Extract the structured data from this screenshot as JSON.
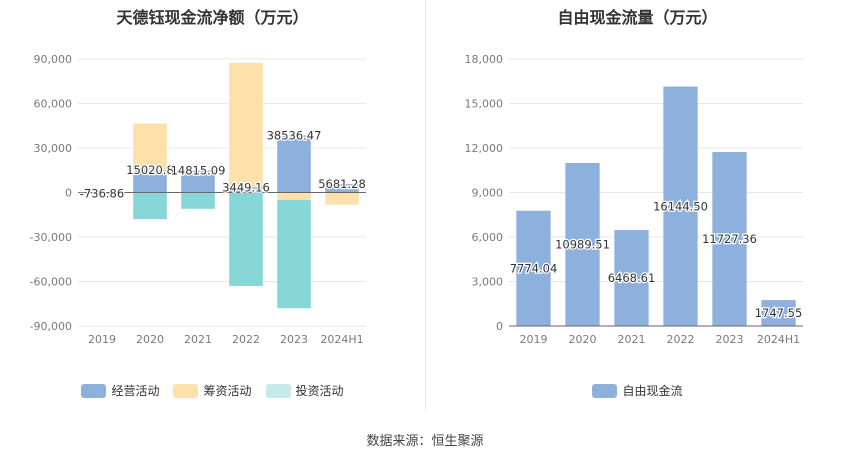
{
  "source": "数据来源：恒生聚源",
  "chart_data": [
    {
      "type": "bar",
      "stacked": true,
      "title": "天德钰现金流净额（万元）",
      "categories": [
        "2019",
        "2020",
        "2021",
        "2022",
        "2023",
        "2024H1"
      ],
      "ylim": [
        -90000,
        90000
      ],
      "yticks": [
        "90,000",
        "60,000",
        "30,000",
        "0",
        "-30,000",
        "-60,000",
        "-90,000"
      ],
      "grid": true,
      "legend_position": "bottom",
      "series": [
        {
          "name": "经营活动",
          "color": "#8eb0dd",
          "values": [
            -736.86,
            15020.8,
            14815.09,
            3449.16,
            38536.47,
            5681.28
          ]
        },
        {
          "name": "筹资活动",
          "color": "#fde0ac",
          "values": [
            0,
            31500,
            0,
            84000,
            -5000,
            -8300
          ]
        },
        {
          "name": "投资活动",
          "color": "#88d7d8",
          "values": [
            0,
            -18000,
            -11000,
            -63000,
            -73000,
            0
          ]
        }
      ],
      "data_labels": [
        "-736.86",
        "15020.8",
        "14815.09",
        "3449.16",
        "38536.47",
        "5681.28"
      ]
    },
    {
      "type": "bar",
      "title": "自由现金流量（万元）",
      "categories": [
        "2019",
        "2020",
        "2021",
        "2022",
        "2023",
        "2024H1"
      ],
      "ylim": [
        0,
        18000
      ],
      "yticks": [
        "18,000",
        "15,000",
        "12,000",
        "9,000",
        "6,000",
        "3,000",
        "0"
      ],
      "grid": true,
      "legend_position": "bottom",
      "series": [
        {
          "name": "自由现金流",
          "color": "#8eb0dd",
          "values": [
            7774.04,
            10989.51,
            6468.61,
            16144.5,
            11727.36,
            1747.55
          ]
        }
      ],
      "data_labels": [
        "7774.04",
        "10989.51",
        "6468.61",
        "16144.50",
        "11727.36",
        "1747.55"
      ]
    }
  ]
}
